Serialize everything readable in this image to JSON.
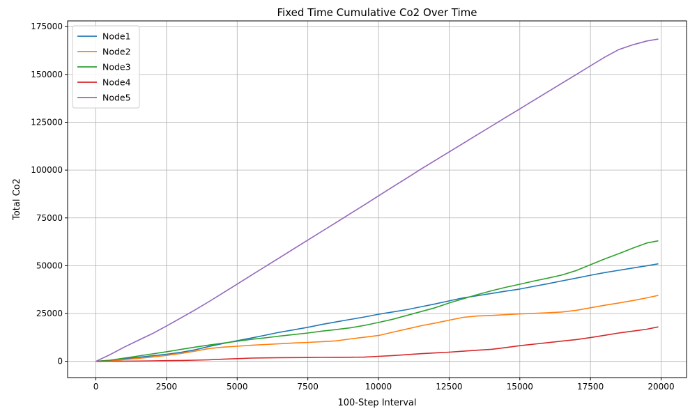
{
  "chart_data": {
    "type": "line",
    "title": "Fixed Time Cumulative Co2 Over Time",
    "xlabel": "100-Step Interval",
    "ylabel": "Total Co2",
    "xlim": [
      -1000,
      20900
    ],
    "ylim": [
      -8500,
      178000
    ],
    "x_ticks": [
      0,
      2500,
      5000,
      7500,
      10000,
      12500,
      15000,
      17500,
      20000
    ],
    "y_ticks": [
      0,
      25000,
      50000,
      75000,
      100000,
      125000,
      150000,
      175000
    ],
    "grid": true,
    "legend_position": "top-left",
    "x": [
      0,
      500,
      1000,
      1500,
      2000,
      2500,
      3000,
      3500,
      4000,
      4500,
      5000,
      5500,
      6000,
      6500,
      7000,
      7500,
      8000,
      8500,
      9000,
      9500,
      10000,
      10500,
      11000,
      11500,
      12000,
      12500,
      13000,
      13500,
      14000,
      14500,
      15000,
      15500,
      16000,
      16500,
      17000,
      17500,
      18000,
      18500,
      19000,
      19500,
      19900
    ],
    "series": [
      {
        "name": "Node1",
        "color": "#1f77b4",
        "values": [
          0,
          500,
          1300,
          2100,
          2900,
          3700,
          4700,
          6000,
          7800,
          9300,
          10800,
          12200,
          13700,
          15200,
          16500,
          17800,
          19300,
          20600,
          21900,
          23200,
          24600,
          25800,
          27000,
          28500,
          30000,
          31600,
          33200,
          34300,
          35500,
          36700,
          37800,
          39200,
          40600,
          42100,
          43500,
          45000,
          46400,
          47600,
          48800,
          50000,
          51000
        ]
      },
      {
        "name": "Node2",
        "color": "#ff7f0e",
        "values": [
          0,
          300,
          900,
          1500,
          2300,
          3100,
          4100,
          5300,
          6700,
          7400,
          7900,
          8400,
          8800,
          9200,
          9600,
          9900,
          10300,
          10700,
          11700,
          12600,
          13500,
          15200,
          16900,
          18600,
          20000,
          21500,
          23000,
          23700,
          24000,
          24400,
          24800,
          25100,
          25400,
          25800,
          26700,
          28000,
          29300,
          30500,
          31800,
          33200,
          34500
        ]
      },
      {
        "name": "Node3",
        "color": "#2ca02c",
        "values": [
          0,
          600,
          1700,
          2800,
          3900,
          5000,
          6200,
          7400,
          8500,
          9500,
          10500,
          11500,
          12300,
          13200,
          14000,
          14800,
          15800,
          16600,
          17500,
          18800,
          20300,
          22000,
          24000,
          26000,
          28000,
          30500,
          32700,
          34900,
          36900,
          38700,
          40300,
          42000,
          43500,
          45200,
          47500,
          50500,
          53500,
          56300,
          59200,
          61900,
          63000
        ]
      },
      {
        "name": "Node4",
        "color": "#d62728",
        "values": [
          0,
          50,
          100,
          150,
          250,
          350,
          450,
          600,
          800,
          1100,
          1400,
          1700,
          1800,
          1900,
          1950,
          2000,
          2050,
          2100,
          2150,
          2200,
          2600,
          3000,
          3500,
          4000,
          4400,
          4800,
          5300,
          5800,
          6300,
          7200,
          8200,
          9000,
          9800,
          10600,
          11400,
          12400,
          13600,
          14800,
          15800,
          16800,
          18000
        ]
      },
      {
        "name": "Node5",
        "color": "#9467bd",
        "values": [
          0,
          3500,
          7400,
          11000,
          14500,
          18500,
          22600,
          26800,
          31200,
          35800,
          40400,
          45000,
          49600,
          54200,
          58800,
          63400,
          68000,
          72600,
          77200,
          81800,
          86500,
          91200,
          95800,
          100500,
          105000,
          109500,
          114000,
          118500,
          123000,
          127500,
          132000,
          136500,
          141000,
          145500,
          150000,
          154500,
          159000,
          163000,
          165500,
          167500,
          168500
        ]
      }
    ]
  }
}
